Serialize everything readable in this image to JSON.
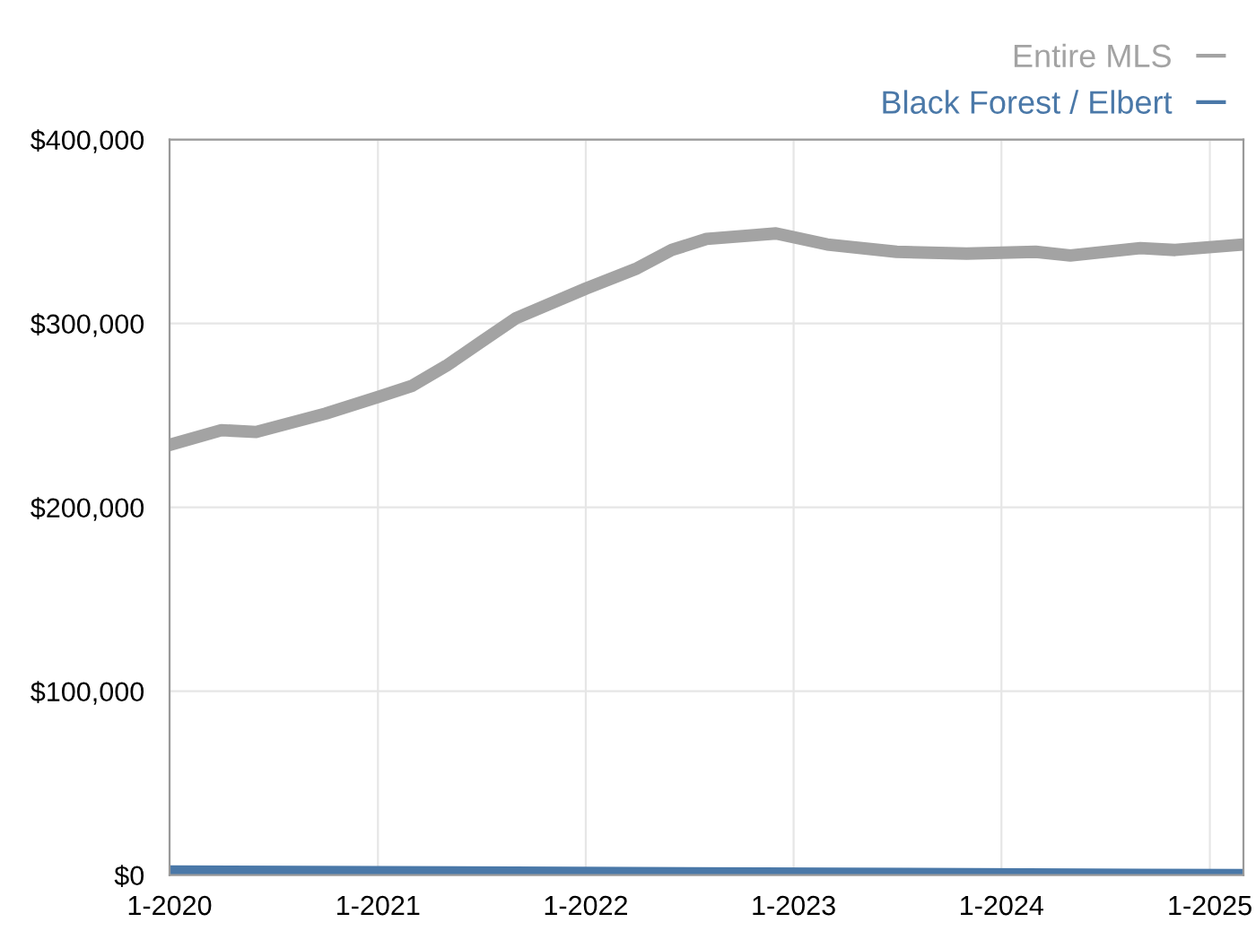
{
  "chart_data": {
    "type": "line",
    "series": [
      {
        "name": "Entire MLS",
        "color": "#a3a3a3",
        "x": [
          "2020-01",
          "2020-04",
          "2020-06",
          "2020-08",
          "2020-10",
          "2021-01",
          "2021-03",
          "2021-05",
          "2021-07",
          "2021-09",
          "2022-01",
          "2022-04",
          "2022-06",
          "2022-08",
          "2022-12",
          "2023-03",
          "2023-07",
          "2023-11",
          "2024-03",
          "2024-05",
          "2024-09",
          "2024-11",
          "2025-03"
        ],
        "values": [
          234000,
          242000,
          241000,
          246000,
          251000,
          260000,
          266000,
          277000,
          290000,
          303000,
          319000,
          330000,
          340000,
          346000,
          349000,
          343000,
          339000,
          338000,
          339000,
          337000,
          341000,
          340000,
          343000
        ]
      },
      {
        "name": "Black Forest / Elbert",
        "color": "#4a78a8",
        "x": [
          "2020-01",
          "2025-03"
        ],
        "values": [
          2000,
          0
        ]
      }
    ],
    "xlim": [
      "2020-01",
      "2025-03"
    ],
    "xticks": [
      {
        "value": "2020-01",
        "label": "1-2020"
      },
      {
        "value": "2021-01",
        "label": "1-2021"
      },
      {
        "value": "2022-01",
        "label": "1-2022"
      },
      {
        "value": "2023-01",
        "label": "1-2023"
      },
      {
        "value": "2024-01",
        "label": "1-2024"
      },
      {
        "value": "2025-01",
        "label": "1-2025"
      }
    ],
    "ylim": [
      0,
      400000
    ],
    "yticks": [
      {
        "value": 0,
        "label": "$0"
      },
      {
        "value": 100000,
        "label": "$100,000"
      },
      {
        "value": 200000,
        "label": "$200,000"
      },
      {
        "value": 300000,
        "label": "$300,000"
      },
      {
        "value": 400000,
        "label": "$400,000"
      }
    ],
    "grid": true,
    "legend": "top right",
    "line_style": "solid",
    "marker": "none"
  }
}
